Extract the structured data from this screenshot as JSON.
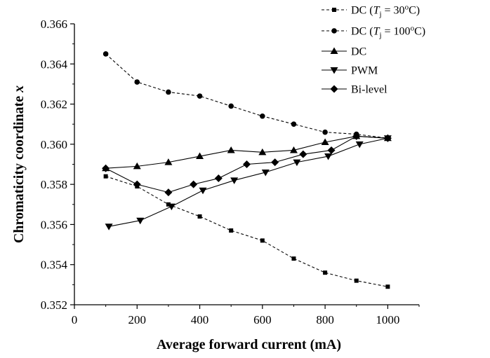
{
  "chart_data": {
    "type": "line",
    "xlabel": "Average forward current (mA)",
    "ylabel": "Chromaticity coordinate x",
    "xlim": [
      0,
      1100
    ],
    "ylim": [
      0.352,
      0.366
    ],
    "xticks": [
      0,
      200,
      400,
      600,
      800,
      1000
    ],
    "xtick_labels": [
      "0",
      "200",
      "400",
      "600",
      "800",
      "1000"
    ],
    "yticks": [
      0.352,
      0.354,
      0.356,
      0.358,
      0.36,
      0.362,
      0.364,
      0.366
    ],
    "ytick_labels": [
      "0.352",
      "0.354",
      "0.356",
      "0.358",
      "0.360",
      "0.362",
      "0.364",
      "0.366"
    ],
    "grid": false,
    "legend_position": "top-right",
    "series": [
      {
        "name": "DC (Tj = 30oC)",
        "legend_parts": [
          "DC (",
          "T",
          "j",
          " = 30",
          "o",
          "C)"
        ],
        "marker": "square",
        "line_style": "dashed",
        "x": [
          100,
          200,
          300,
          400,
          500,
          600,
          700,
          800,
          900,
          1000
        ],
        "y": [
          0.3584,
          0.3579,
          0.357,
          0.3564,
          0.3557,
          0.3552,
          0.3543,
          0.3536,
          0.3532,
          0.3529
        ]
      },
      {
        "name": "DC (Tj = 100oC)",
        "legend_parts": [
          "DC (",
          "T",
          "j",
          " = 100",
          "o",
          "C)"
        ],
        "marker": "circle",
        "line_style": "dashed",
        "x": [
          100,
          200,
          300,
          400,
          500,
          600,
          700,
          800,
          900,
          1000
        ],
        "y": [
          0.3645,
          0.3631,
          0.3626,
          0.3624,
          0.3619,
          0.3614,
          0.361,
          0.3606,
          0.3605,
          0.3603
        ]
      },
      {
        "name": "DC",
        "marker": "triangle-up",
        "line_style": "solid",
        "x": [
          100,
          200,
          300,
          400,
          500,
          600,
          700,
          800,
          900,
          1000
        ],
        "y": [
          0.3588,
          0.3589,
          0.3591,
          0.3594,
          0.3597,
          0.3596,
          0.3597,
          0.3601,
          0.3604,
          0.3603
        ]
      },
      {
        "name": "PWM",
        "marker": "triangle-down",
        "line_style": "solid",
        "x": [
          110,
          210,
          310,
          410,
          510,
          610,
          710,
          810,
          910,
          1000
        ],
        "y": [
          0.3559,
          0.3562,
          0.3569,
          0.3577,
          0.3582,
          0.3586,
          0.3591,
          0.3594,
          0.36,
          0.3603
        ]
      },
      {
        "name": "Bi-level",
        "marker": "diamond",
        "line_style": "solid",
        "x": [
          100,
          200,
          300,
          380,
          460,
          550,
          640,
          730,
          820,
          900,
          1000
        ],
        "y": [
          0.3588,
          0.358,
          0.3576,
          0.358,
          0.3583,
          0.359,
          0.3591,
          0.3595,
          0.3597,
          0.3604,
          0.3603
        ]
      }
    ]
  }
}
